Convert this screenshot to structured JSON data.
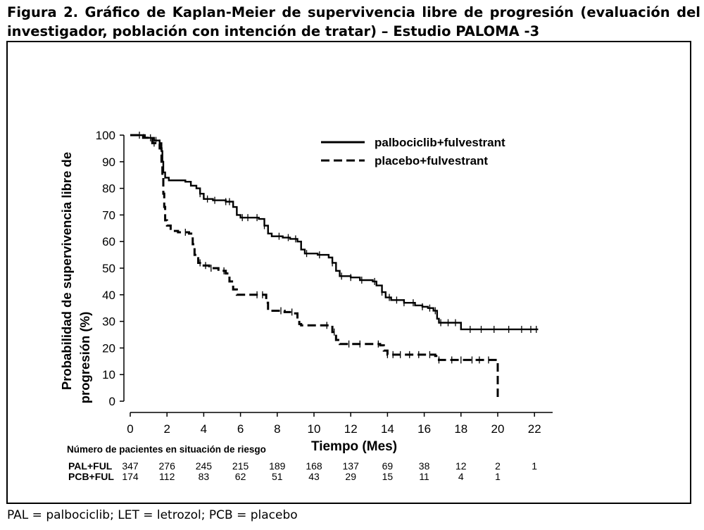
{
  "caption": "Figura 2. Gráfico de Kaplan-Meier de supervivencia libre de progresión (evaluación del investigador, población con intención de tratar) – Estudio PALOMA -3",
  "footnote": "PAL = palbociclib; LET = letrozol; PCB = placebo",
  "chart_data": {
    "type": "line",
    "title": "",
    "xlabel": "Tiempo (Mes)",
    "ylabel": "Probabilidad de supervivencia libre de progresión (%)",
    "ylabel_lines": [
      "Probabilidad de supervivencia libre de",
      "progresión (%)"
    ],
    "xlim": [
      0,
      22
    ],
    "ylim": [
      0,
      100
    ],
    "x_ticks": [
      0,
      2,
      4,
      6,
      8,
      10,
      12,
      14,
      16,
      18,
      20,
      22
    ],
    "y_ticks": [
      0,
      10,
      20,
      30,
      40,
      50,
      60,
      70,
      80,
      90,
      100
    ],
    "grid": false,
    "legend_position": "top-right",
    "series": [
      {
        "name": "palbociclib+fulvestrant",
        "style": "solid",
        "color": "#000000",
        "steps": [
          [
            0,
            100
          ],
          [
            0.6,
            100
          ],
          [
            0.8,
            99
          ],
          [
            1.3,
            98
          ],
          [
            1.6,
            97
          ],
          [
            1.7,
            94
          ],
          [
            1.75,
            90
          ],
          [
            1.8,
            86
          ],
          [
            1.9,
            84
          ],
          [
            2.1,
            83
          ],
          [
            3.0,
            82.5
          ],
          [
            3.3,
            81
          ],
          [
            3.6,
            80
          ],
          [
            3.8,
            78
          ],
          [
            4.0,
            76
          ],
          [
            4.5,
            75.5
          ],
          [
            5.2,
            75
          ],
          [
            5.6,
            73
          ],
          [
            5.8,
            70
          ],
          [
            6.0,
            69
          ],
          [
            7.0,
            68.5
          ],
          [
            7.3,
            66
          ],
          [
            7.5,
            63
          ],
          [
            7.7,
            62
          ],
          [
            8.3,
            61.5
          ],
          [
            8.7,
            61
          ],
          [
            9.1,
            60
          ],
          [
            9.3,
            57
          ],
          [
            9.5,
            55.5
          ],
          [
            10.2,
            55
          ],
          [
            10.8,
            54
          ],
          [
            11.0,
            52
          ],
          [
            11.2,
            49
          ],
          [
            11.4,
            47
          ],
          [
            12.0,
            46.5
          ],
          [
            12.5,
            45.5
          ],
          [
            13.2,
            45
          ],
          [
            13.4,
            43.5
          ],
          [
            13.7,
            41
          ],
          [
            13.9,
            39
          ],
          [
            14.2,
            38
          ],
          [
            14.9,
            37
          ],
          [
            15.5,
            36
          ],
          [
            15.9,
            35.5
          ],
          [
            16.2,
            35
          ],
          [
            16.5,
            34
          ],
          [
            16.7,
            31
          ],
          [
            16.8,
            29.5
          ],
          [
            17.5,
            29.5
          ],
          [
            18.0,
            29.5
          ],
          [
            18.0,
            27
          ],
          [
            22.2,
            27
          ]
        ],
        "censor_x": [
          0.5,
          1.1,
          1.4,
          1.6,
          3.8,
          4.2,
          4.6,
          5.2,
          5.4,
          6.1,
          6.4,
          6.9,
          7.3,
          8.1,
          8.6,
          9.0,
          9.6,
          10.3,
          11.0,
          11.5,
          12.0,
          12.6,
          13.3,
          13.7,
          14.1,
          14.5,
          14.9,
          15.4,
          15.9,
          16.3,
          16.6,
          16.9,
          17.3,
          17.7,
          18.5,
          19.1,
          19.8,
          20.6,
          21.3,
          21.8,
          22.1
        ]
      },
      {
        "name": "placebo+fulvestrant",
        "style": "dashed",
        "color": "#000000",
        "steps": [
          [
            0,
            100
          ],
          [
            0.7,
            99
          ],
          [
            1.2,
            97
          ],
          [
            1.6,
            95
          ],
          [
            1.7,
            90
          ],
          [
            1.75,
            84
          ],
          [
            1.8,
            78
          ],
          [
            1.85,
            73
          ],
          [
            1.9,
            68
          ],
          [
            2.0,
            66
          ],
          [
            2.2,
            64
          ],
          [
            2.6,
            63.5
          ],
          [
            3.2,
            63
          ],
          [
            3.4,
            59
          ],
          [
            3.5,
            55
          ],
          [
            3.7,
            52
          ],
          [
            3.9,
            51
          ],
          [
            4.3,
            50
          ],
          [
            4.8,
            49
          ],
          [
            5.2,
            48
          ],
          [
            5.4,
            45
          ],
          [
            5.6,
            42
          ],
          [
            5.8,
            40
          ],
          [
            7.3,
            40
          ],
          [
            7.4,
            37
          ],
          [
            7.5,
            34
          ],
          [
            8.4,
            33.5
          ],
          [
            8.9,
            33
          ],
          [
            9.1,
            31
          ],
          [
            9.2,
            29
          ],
          [
            9.3,
            28.5
          ],
          [
            10.4,
            28.5
          ],
          [
            10.8,
            28.5
          ],
          [
            11.0,
            26
          ],
          [
            11.2,
            23
          ],
          [
            11.4,
            21.5
          ],
          [
            13.2,
            21.5
          ],
          [
            13.6,
            21
          ],
          [
            13.8,
            19
          ],
          [
            14.0,
            17.5
          ],
          [
            16.4,
            17.5
          ],
          [
            16.6,
            17
          ],
          [
            16.8,
            15.5
          ],
          [
            20.0,
            15.5
          ],
          [
            20.0,
            0
          ]
        ],
        "censor_x": [
          1.3,
          3.0,
          3.8,
          4.1,
          4.4,
          5.1,
          6.9,
          7.2,
          8.2,
          8.8,
          10.7,
          11.1,
          11.9,
          12.5,
          13.5,
          14.0,
          14.3,
          14.7,
          15.2,
          15.7,
          16.3,
          16.8,
          17.5,
          18.0,
          18.6,
          19.0,
          19.5
        ]
      }
    ],
    "risk_table": {
      "title": "Número de pacientes en situación de riesgo",
      "rows": [
        {
          "label": "PAL+FUL",
          "values": [
            "347",
            "276",
            "245",
            "215",
            "189",
            "168",
            "137",
            "69",
            "38",
            "12",
            "2",
            "1"
          ]
        },
        {
          "label": "PCB+FUL",
          "values": [
            "174",
            "112",
            "83",
            "62",
            "51",
            "43",
            "29",
            "15",
            "11",
            "4",
            "1",
            ""
          ]
        }
      ]
    }
  }
}
